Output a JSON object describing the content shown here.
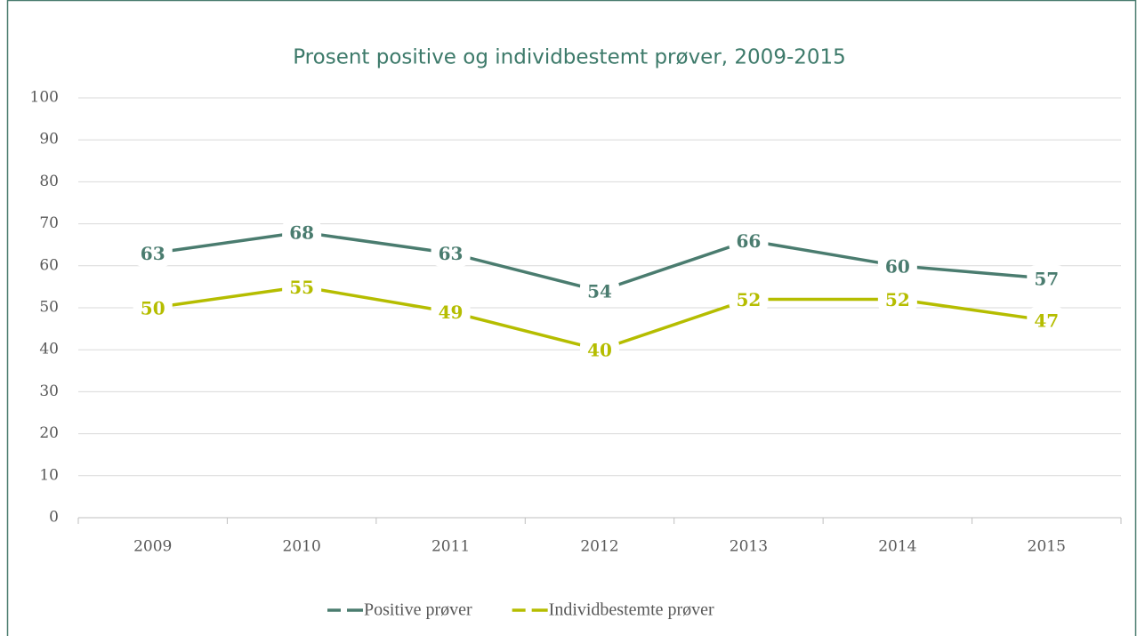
{
  "chart_data": {
    "type": "line",
    "title": "Prosent positive og individbestemt prøver, 2009-2015",
    "categories": [
      "2009",
      "2010",
      "2011",
      "2012",
      "2013",
      "2014",
      "2015"
    ],
    "series": [
      {
        "name": "Positive prøver",
        "color": "#4a7c6f",
        "values": [
          63,
          68,
          63,
          54,
          66,
          60,
          57
        ]
      },
      {
        "name": "Individbestemte prøver",
        "color": "#b5bd00",
        "values": [
          50,
          55,
          49,
          40,
          52,
          52,
          47
        ]
      }
    ],
    "ylim": [
      0,
      100
    ],
    "yticks": [
      0,
      10,
      20,
      30,
      40,
      50,
      60,
      70,
      80,
      90,
      100
    ],
    "grid": true
  }
}
